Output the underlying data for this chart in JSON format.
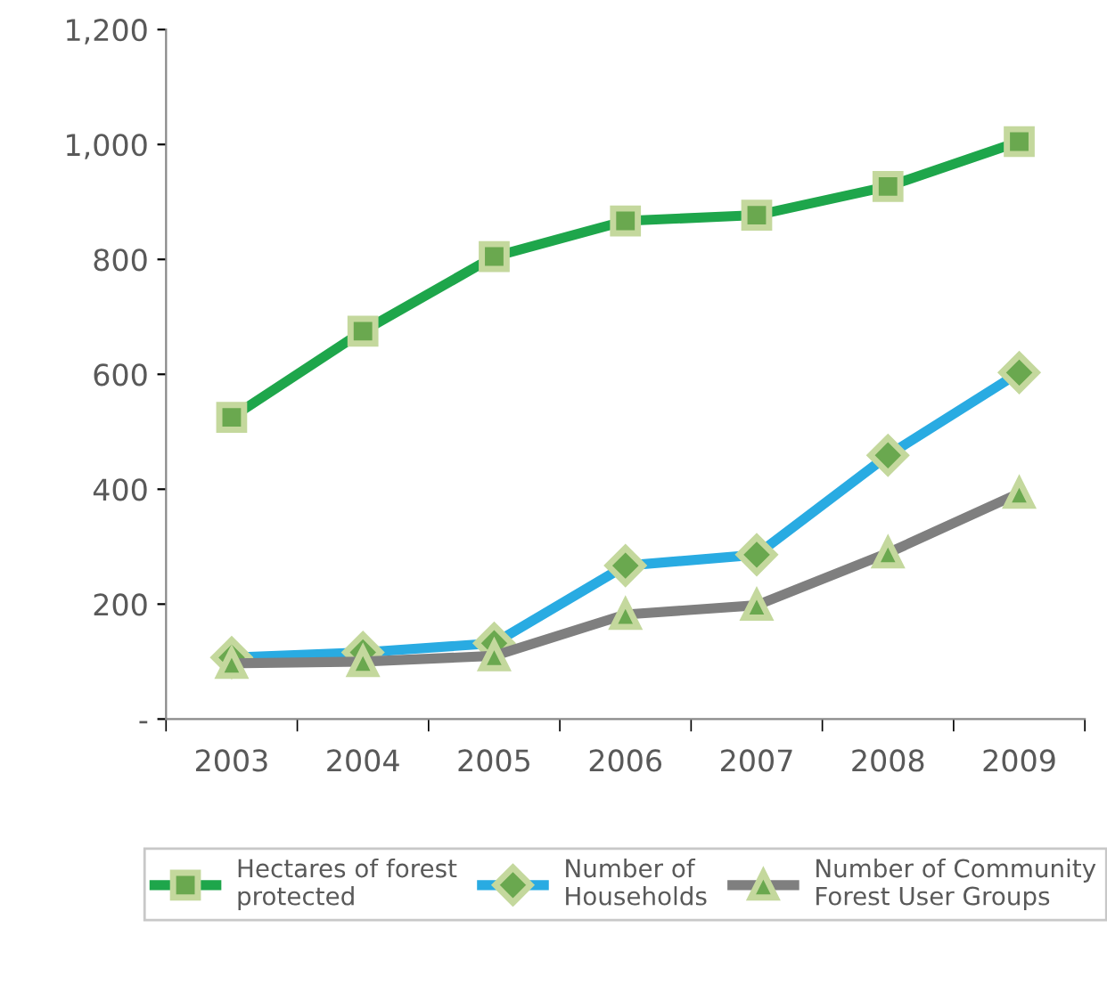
{
  "chart_data": {
    "type": "line",
    "categories": [
      "2003",
      "2004",
      "2005",
      "2006",
      "2007",
      "2008",
      "2009"
    ],
    "series": [
      {
        "name": "Hectares of forest\nprotected",
        "color": "#1ea64b",
        "marker": "square",
        "values": [
          525,
          675,
          805,
          867,
          877,
          927,
          1005
        ]
      },
      {
        "name": "Number of\nHouseholds",
        "color": "#29abe2",
        "marker": "diamond",
        "values": [
          107,
          116,
          132,
          267,
          286,
          459,
          603
        ]
      },
      {
        "name": "Number of Community\nForest User Groups",
        "color": "#7f7f7f",
        "marker": "triangle",
        "values": [
          97,
          100,
          110,
          182,
          198,
          289,
          393
        ]
      }
    ],
    "ylim": [
      0,
      1200
    ],
    "yticks": [
      {
        "value": 0,
        "label": "-"
      },
      200,
      400,
      600,
      800,
      {
        "value": 1000,
        "label": "1,000"
      },
      {
        "value": 1200,
        "label": "1,200"
      }
    ],
    "grid": false,
    "legend": "bottom"
  }
}
